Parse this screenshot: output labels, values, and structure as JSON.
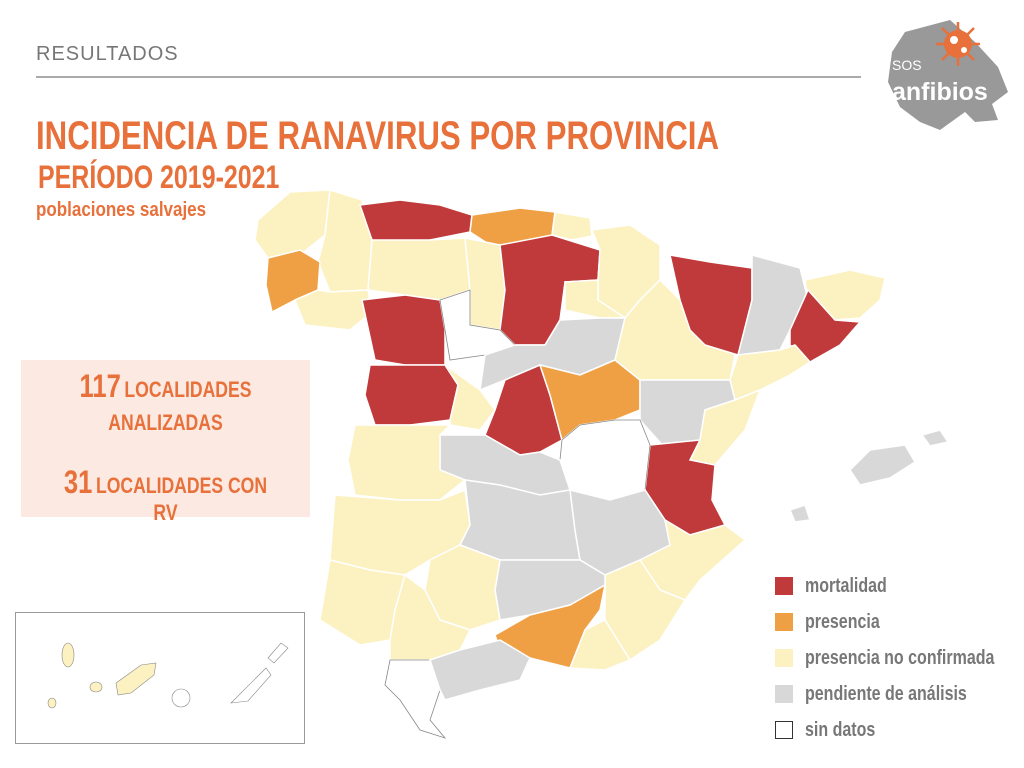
{
  "header": {
    "section": "RESULTADOS",
    "title": "INCIDENCIA DE RANAVIRUS POR PROVINCIA",
    "period": "PERÍODO 2019-2021",
    "subtitle": "poblaciones salvajes"
  },
  "logo": {
    "top": "SOS",
    "bottom": "anfibios",
    "colors": {
      "virus": "#e8703a",
      "frog": "#999999"
    }
  },
  "stats": {
    "analyzed_count": "117",
    "analyzed_label_1": "LOCALIDADES",
    "analyzed_label_2": "ANALIZADAS",
    "rv_count": "31",
    "rv_label": "LOCALIDADES CON RV"
  },
  "legend": [
    {
      "label": "mortalidad",
      "color": "#c0393b"
    },
    {
      "label": "presencia",
      "color": "#f0a044"
    },
    {
      "label": "presencia no confirmada",
      "color": "#fcf1c0"
    },
    {
      "label": "pendiente de análisis",
      "color": "#d8d8d8"
    },
    {
      "label": "sin datos",
      "color": "#ffffff"
    }
  ]
}
